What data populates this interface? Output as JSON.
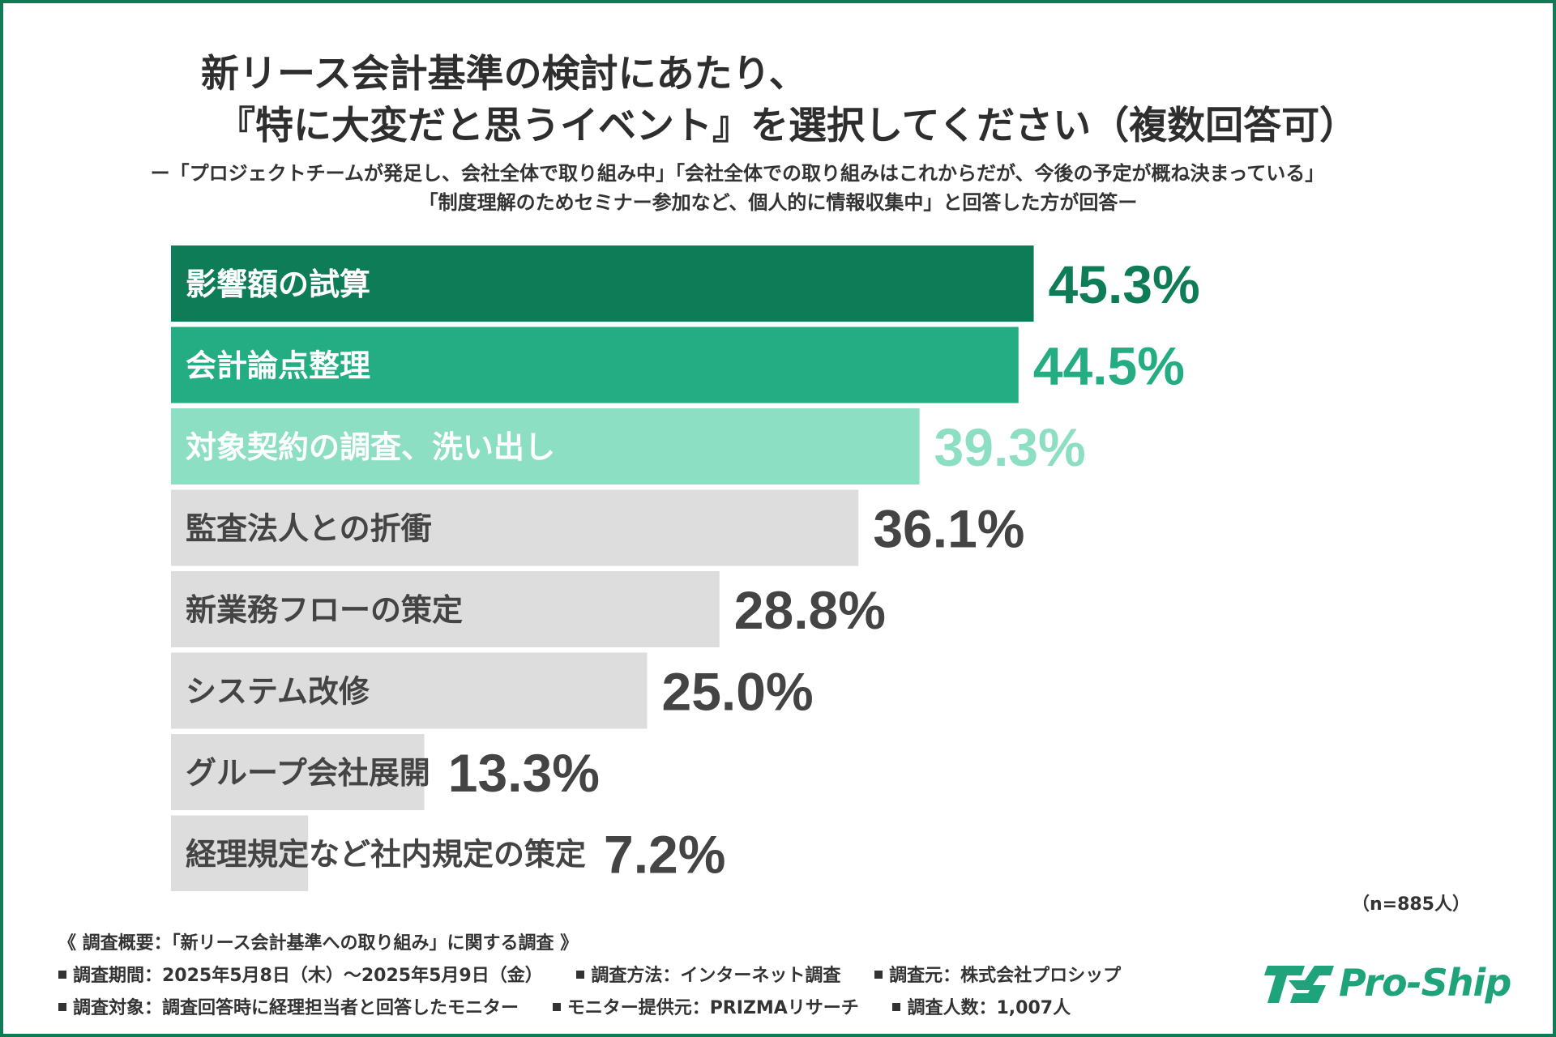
{
  "title": {
    "line1": "新リース会計基準の検討にあたり、",
    "line2": "『特に大変だと思うイベント』を選択してください（複数回答可）"
  },
  "subtitle": {
    "line1": "ー「プロジェクトチームが発足し、会社全体で取り組み中」「会社全体での取り組みはこれからだが、今後の予定が概ね決まっている」",
    "line2": "「制度理解のためセミナー参加など、個人的に情報収集中」と回答した方が回答ー"
  },
  "chart_data": {
    "type": "bar",
    "orientation": "horizontal",
    "categories": [
      "影響額の試算",
      "会計論点整理",
      "対象契約の調査、洗い出し",
      "監査法人との折衝",
      "新業務フローの策定",
      "システム改修",
      "グループ会社展開",
      "経理規定など社内規定の策定"
    ],
    "values": [
      45.3,
      44.5,
      39.3,
      36.1,
      28.8,
      25.0,
      13.3,
      7.2
    ],
    "value_labels": [
      "45.3%",
      "44.5%",
      "39.3%",
      "36.1%",
      "28.8%",
      "25.0%",
      "13.3%",
      "7.2%"
    ],
    "unit": "%",
    "xlim": [
      0,
      100
    ],
    "bar_colors": [
      "#0e7c57",
      "#24ad83",
      "#8ddfc3",
      "#dddddd",
      "#dddddd",
      "#dddddd",
      "#dddddd",
      "#dddddd"
    ],
    "category_text_colors": [
      "#ffffff",
      "#ffffff",
      "#ffffff",
      "#444444",
      "#444444",
      "#444444",
      "#444444",
      "#444444"
    ],
    "value_text_colors": [
      "#0e7c57",
      "#24ad83",
      "#8ddfc3",
      "#444444",
      "#444444",
      "#444444",
      "#444444",
      "#444444"
    ],
    "grid": false,
    "legend": "none"
  },
  "sample_size": "（n=885人）",
  "footer": {
    "heading": "《 調査概要：「新リース会計基準への取り組み」に関する調査 》",
    "period": "調査期間：2025年5月8日（木）～2025年5月9日（金）",
    "method": "調査方法：インターネット調査",
    "source": "調査元：株式会社プロシップ",
    "target": "調査対象：調査回答時に経理担当者と回答したモニター",
    "provider": "モニター提供元：PRIZMAリサーチ",
    "count": "調査人数：1,007人"
  },
  "logo": {
    "text": "Pro-Ship",
    "mark": "PS",
    "color": "#1ea37a"
  }
}
